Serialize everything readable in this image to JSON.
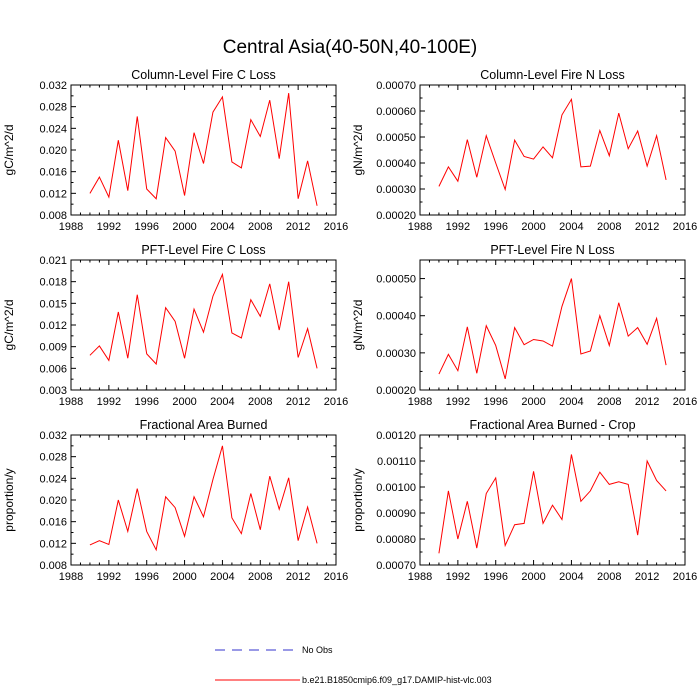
{
  "figure_title": "Central Asia(40-50N,40-100E)",
  "colors": {
    "model": "#ff0000",
    "obs": "#3333cc",
    "axis": "#000000"
  },
  "legend": {
    "obs_label": "No Obs",
    "model_label": "b.e21.B1850cmip6.f09_g17.DAMIP-hist-vlc.003"
  },
  "chart_data": [
    {
      "type": "line",
      "title": "Column-Level Fire C Loss",
      "ylabel": "gC/m^2/d",
      "xlim": [
        1988,
        2016
      ],
      "xticks": [
        1988,
        1992,
        1996,
        2000,
        2004,
        2008,
        2012,
        2016
      ],
      "ylim": [
        0.008,
        0.032
      ],
      "yticks": [
        "0.008",
        "0.012",
        "0.016",
        "0.020",
        "0.024",
        "0.028",
        "0.032"
      ],
      "series": [
        {
          "name": "b.e21.B1850cmip6.f09_g17.DAMIP-hist-vlc.003",
          "x": [
            1990,
            1991,
            1992,
            1993,
            1994,
            1995,
            1996,
            1997,
            1998,
            1999,
            2000,
            2001,
            2002,
            2003,
            2004,
            2005,
            2006,
            2007,
            2008,
            2009,
            2010,
            2011,
            2012,
            2013,
            2014
          ],
          "values": [
            0.012,
            0.015,
            0.0113,
            0.0218,
            0.0125,
            0.0262,
            0.0128,
            0.011,
            0.0223,
            0.0198,
            0.0116,
            0.0232,
            0.0175,
            0.027,
            0.0298,
            0.0178,
            0.0167,
            0.0256,
            0.0225,
            0.0292,
            0.0184,
            0.0305,
            0.011,
            0.018,
            0.0097
          ]
        }
      ]
    },
    {
      "type": "line",
      "title": "Column-Level Fire N Loss",
      "ylabel": "gN/m^2/d",
      "xlim": [
        1988,
        2016
      ],
      "xticks": [
        1988,
        1992,
        1996,
        2000,
        2004,
        2008,
        2012,
        2016
      ],
      "ylim": [
        0.0002,
        0.0007
      ],
      "yticks": [
        "0.00020",
        "0.00030",
        "0.00040",
        "0.00050",
        "0.00060",
        "0.00070"
      ],
      "series": [
        {
          "name": "b.e21.B1850cmip6.f09_g17.DAMIP-hist-vlc.003",
          "x": [
            1990,
            1991,
            1992,
            1993,
            1994,
            1995,
            1996,
            1997,
            1998,
            1999,
            2000,
            2001,
            2002,
            2003,
            2004,
            2005,
            2006,
            2007,
            2008,
            2009,
            2010,
            2011,
            2012,
            2013,
            2014
          ],
          "values": [
            0.00031,
            0.000385,
            0.00033,
            0.00049,
            0.000345,
            0.000505,
            0.0004,
            0.000298,
            0.000488,
            0.000425,
            0.000415,
            0.000462,
            0.00042,
            0.000585,
            0.000645,
            0.000385,
            0.000388,
            0.000525,
            0.000428,
            0.000592,
            0.000455,
            0.000523,
            0.000388,
            0.000505,
            0.000335
          ]
        }
      ]
    },
    {
      "type": "line",
      "title": "PFT-Level Fire C Loss",
      "ylabel": "gC/m^2/d",
      "xlim": [
        1988,
        2016
      ],
      "xticks": [
        1988,
        1992,
        1996,
        2000,
        2004,
        2008,
        2012,
        2016
      ],
      "ylim": [
        0.003,
        0.021
      ],
      "yticks": [
        "0.003",
        "0.006",
        "0.009",
        "0.012",
        "0.015",
        "0.018",
        "0.021"
      ],
      "series": [
        {
          "name": "b.e21.B1850cmip6.f09_g17.DAMIP-hist-vlc.003",
          "x": [
            1990,
            1991,
            1992,
            1993,
            1994,
            1995,
            1996,
            1997,
            1998,
            1999,
            2000,
            2001,
            2002,
            2003,
            2004,
            2005,
            2006,
            2007,
            2008,
            2009,
            2010,
            2011,
            2012,
            2013,
            2014
          ],
          "values": [
            0.0078,
            0.0091,
            0.0071,
            0.0138,
            0.0074,
            0.0162,
            0.008,
            0.0066,
            0.0144,
            0.0125,
            0.0074,
            0.0142,
            0.011,
            0.016,
            0.019,
            0.0109,
            0.0102,
            0.0155,
            0.0132,
            0.0177,
            0.0113,
            0.018,
            0.0075,
            0.0115,
            0.006
          ]
        }
      ]
    },
    {
      "type": "line",
      "title": "PFT-Level Fire N Loss",
      "ylabel": "gN/m^2/d",
      "xlim": [
        1988,
        2016
      ],
      "xticks": [
        1988,
        1992,
        1996,
        2000,
        2004,
        2008,
        2012,
        2016
      ],
      "ylim": [
        0.0002,
        0.00055
      ],
      "yticks": [
        "0.00020",
        "0.00030",
        "0.00040",
        "0.00050"
      ],
      "series": [
        {
          "name": "b.e21.B1850cmip6.f09_g17.DAMIP-hist-vlc.003",
          "x": [
            1990,
            1991,
            1992,
            1993,
            1994,
            1995,
            1996,
            1997,
            1998,
            1999,
            2000,
            2001,
            2002,
            2003,
            2004,
            2005,
            2006,
            2007,
            2008,
            2009,
            2010,
            2011,
            2012,
            2013,
            2014
          ],
          "values": [
            0.000243,
            0.000296,
            0.000252,
            0.00037,
            0.000245,
            0.000373,
            0.00032,
            0.00023,
            0.000368,
            0.000322,
            0.000336,
            0.000332,
            0.000318,
            0.000425,
            0.0005,
            0.000297,
            0.000305,
            0.0004,
            0.00032,
            0.000435,
            0.000345,
            0.000368,
            0.000323,
            0.000393,
            0.000267
          ]
        }
      ]
    },
    {
      "type": "line",
      "title": "Fractional Area Burned",
      "ylabel": "proportion/y",
      "xlim": [
        1988,
        2016
      ],
      "xticks": [
        1988,
        1992,
        1996,
        2000,
        2004,
        2008,
        2012,
        2016
      ],
      "ylim": [
        0.008,
        0.032
      ],
      "yticks": [
        "0.008",
        "0.012",
        "0.016",
        "0.020",
        "0.024",
        "0.028",
        "0.032"
      ],
      "series": [
        {
          "name": "b.e21.B1850cmip6.f09_g17.DAMIP-hist-vlc.003",
          "x": [
            1990,
            1991,
            1992,
            1993,
            1994,
            1995,
            1996,
            1997,
            1998,
            1999,
            2000,
            2001,
            2002,
            2003,
            2004,
            2005,
            2006,
            2007,
            2008,
            2009,
            2010,
            2011,
            2012,
            2013,
            2014
          ],
          "values": [
            0.0117,
            0.0125,
            0.0118,
            0.02,
            0.0142,
            0.0221,
            0.0142,
            0.0108,
            0.0206,
            0.0186,
            0.0133,
            0.0206,
            0.0169,
            0.0238,
            0.03,
            0.0167,
            0.0138,
            0.0212,
            0.0145,
            0.0244,
            0.0183,
            0.0241,
            0.0125,
            0.0187,
            0.012
          ]
        }
      ]
    },
    {
      "type": "line",
      "title": "Fractional Area Burned - Crop",
      "ylabel": "proportion/y",
      "xlim": [
        1988,
        2016
      ],
      "xticks": [
        1988,
        1992,
        1996,
        2000,
        2004,
        2008,
        2012,
        2016
      ],
      "ylim": [
        0.0007,
        0.0012
      ],
      "yticks": [
        "0.00070",
        "0.00080",
        "0.00090",
        "0.00100",
        "0.00110",
        "0.00120"
      ],
      "series": [
        {
          "name": "b.e21.B1850cmip6.f09_g17.DAMIP-hist-vlc.003",
          "x": [
            1990,
            1991,
            1992,
            1993,
            1994,
            1995,
            1996,
            1997,
            1998,
            1999,
            2000,
            2001,
            2002,
            2003,
            2004,
            2005,
            2006,
            2007,
            2008,
            2009,
            2010,
            2011,
            2012,
            2013,
            2014
          ],
          "values": [
            0.000745,
            0.000985,
            0.0008,
            0.000945,
            0.000765,
            0.000975,
            0.001035,
            0.000775,
            0.000855,
            0.00086,
            0.00106,
            0.00086,
            0.00093,
            0.000875,
            0.001125,
            0.000945,
            0.000985,
            0.001057,
            0.00101,
            0.00102,
            0.00101,
            0.000815,
            0.0011,
            0.001025,
            0.000985
          ]
        }
      ]
    }
  ]
}
